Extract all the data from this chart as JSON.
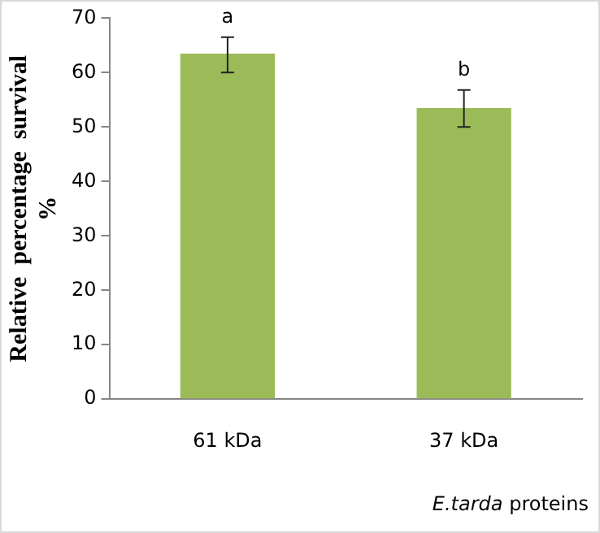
{
  "chart_data": {
    "type": "bar",
    "categories": [
      "61 kDa",
      "37 kDa"
    ],
    "values": [
      63.5,
      53.5
    ],
    "errors": [
      [
        60,
        66.5
      ],
      [
        50,
        56.8
      ]
    ],
    "color": "#9bbb59",
    "ylim": [
      0,
      70
    ],
    "yticks": [
      0,
      10,
      20,
      30,
      40,
      50,
      60,
      70
    ],
    "ylabel": "Relative  percentage  survival %",
    "xlabel": "E.tarda proteins",
    "annotations": [
      {
        "text": "a",
        "x": "61 kDa",
        "y": 66.5
      },
      {
        "text": "b",
        "x": "37 kDa",
        "y": 56.8
      }
    ],
    "grid": false,
    "legend": false
  }
}
